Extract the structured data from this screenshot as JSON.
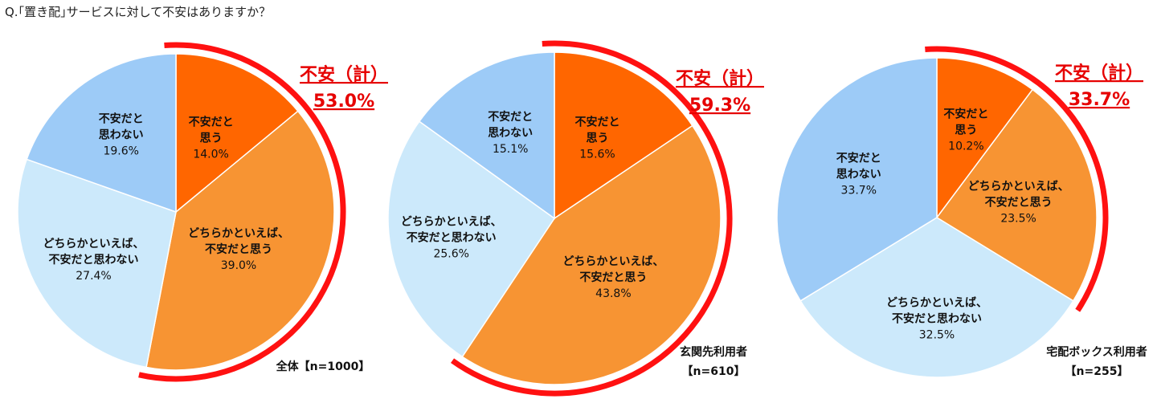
{
  "question": "Q.｢置き配｣サービスに対して不安はありますか？",
  "colors": {
    "anxious": "#FF6600",
    "somewhat_anxious": "#F79433",
    "somewhat_not": "#CCE9FB",
    "not_anxious": "#9DCBF7",
    "arc": "#FF1111",
    "total_text": "#E60000",
    "label_text": "#111111"
  },
  "chart_data": [
    {
      "type": "pie",
      "group": [
        "全体【n=1000】"
      ],
      "total_label": "不安（計）",
      "total_value": "53.0%",
      "slices": [
        {
          "lines": [
            "不安だと",
            "思う"
          ],
          "value": 14.0,
          "color_key": "anxious"
        },
        {
          "lines": [
            "どちらかといえば、",
            "不安だと思う"
          ],
          "value": 39.0,
          "color_key": "somewhat_anxious"
        },
        {
          "lines": [
            "どちらかといえば、",
            "不安だと思わない"
          ],
          "value": 27.4,
          "color_key": "somewhat_not"
        },
        {
          "lines": [
            "不安だと",
            "思わない"
          ],
          "value": 19.6,
          "color_key": "not_anxious"
        }
      ]
    },
    {
      "type": "pie",
      "group": [
        "玄関先利用者",
        "【n=610】"
      ],
      "total_label": "不安（計）",
      "total_value": "59.3%",
      "slices": [
        {
          "lines": [
            "不安だと",
            "思う"
          ],
          "value": 15.6,
          "color_key": "anxious"
        },
        {
          "lines": [
            "どちらかといえば、",
            "不安だと思う"
          ],
          "value": 43.8,
          "color_key": "somewhat_anxious"
        },
        {
          "lines": [
            "どちらかといえば、",
            "不安だと思わない"
          ],
          "value": 25.6,
          "color_key": "somewhat_not"
        },
        {
          "lines": [
            "不安だと",
            "思わない"
          ],
          "value": 15.1,
          "color_key": "not_anxious"
        }
      ]
    },
    {
      "type": "pie",
      "group": [
        "宅配ボックス利用者",
        "【n=255】"
      ],
      "total_label": "不安（計）",
      "total_value": "33.7%",
      "slices": [
        {
          "lines": [
            "不安だと",
            "思う"
          ],
          "value": 10.2,
          "color_key": "anxious"
        },
        {
          "lines": [
            "どちらかといえば、",
            "不安だと思う"
          ],
          "value": 23.5,
          "color_key": "somewhat_anxious"
        },
        {
          "lines": [
            "どちらかといえば、",
            "不安だと思わない"
          ],
          "value": 32.5,
          "color_key": "somewhat_not"
        },
        {
          "lines": [
            "不安だと",
            "思わない"
          ],
          "value": 33.7,
          "color_key": "not_anxious"
        }
      ]
    }
  ]
}
